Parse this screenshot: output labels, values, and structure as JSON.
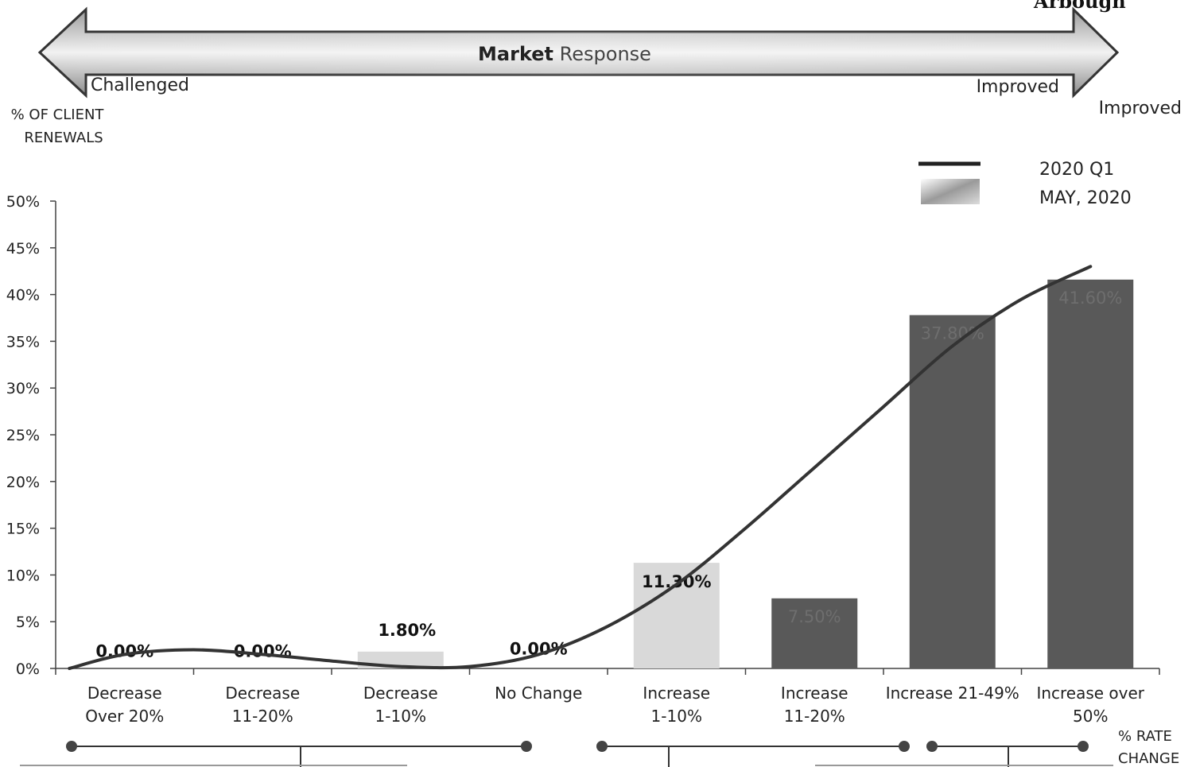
{
  "corner_text": "Arbough",
  "banner": {
    "title_bold": "Market",
    "title_light": "Response",
    "left_label": "Challenged",
    "right_label": "Improved"
  },
  "right_label_outside": "Improved",
  "y_axis_title_line1": "% OF CLIENT",
  "y_axis_title_line2": "RENEWALS",
  "x_axis_title_line1": "% RATE",
  "x_axis_title_line2": "CHANGE",
  "legend": {
    "line_label": "2020 Q1",
    "bar_label": "MAY, 2020"
  },
  "colors": {
    "dark_bar": "#595959",
    "light_bar": "#d9d9d9",
    "line": "#333333",
    "banner_dark": "#707070",
    "banner_light": "#e8e8e8"
  },
  "chart_data": {
    "type": "bar",
    "categories": [
      [
        "Decrease",
        "Over 20%"
      ],
      [
        "Decrease",
        "11-20%"
      ],
      [
        "Decrease",
        "1-10%"
      ],
      [
        "No Change"
      ],
      [
        "Increase",
        "1-10%"
      ],
      [
        "Increase",
        "11-20%"
      ],
      [
        "Increase 21-49%"
      ],
      [
        "Increase over",
        "50%"
      ]
    ],
    "series": [
      {
        "name": "MAY, 2020",
        "values": [
          0.0,
          0.0,
          1.8,
          0.0,
          11.3,
          7.5,
          37.8,
          41.6
        ],
        "labels": [
          "0.00%",
          "0.00%",
          "1.80%",
          "0.00%",
          "11.30%",
          "7.50%",
          "37.80%",
          "41.60%"
        ],
        "bar_shade": [
          "light",
          "light",
          "light",
          "light",
          "light",
          "dark",
          "dark",
          "dark"
        ]
      },
      {
        "name": "2020 Q1",
        "type": "line",
        "smooth": true,
        "x": [
          0.1,
          0.5,
          1.0,
          1.5,
          2.0,
          2.5,
          3.0,
          3.5,
          4.0,
          4.5,
          5.0,
          5.5,
          6.0,
          6.5,
          7.0,
          7.5
        ],
        "values": [
          0.0,
          1.5,
          2.0,
          1.5,
          0.8,
          0.2,
          0.2,
          1.5,
          4.5,
          9.0,
          15.0,
          21.5,
          28.0,
          34.5,
          39.5,
          43.0
        ]
      }
    ],
    "ylim": [
      0,
      50
    ],
    "yticks": [
      0,
      5,
      10,
      15,
      20,
      25,
      30,
      35,
      40,
      45,
      50
    ],
    "ytick_labels": [
      "0%",
      "5%",
      "10%",
      "15%",
      "20%",
      "25%",
      "30%",
      "35%",
      "40%",
      "45%",
      "50%"
    ],
    "grid": false,
    "legend_position": "top-right"
  }
}
